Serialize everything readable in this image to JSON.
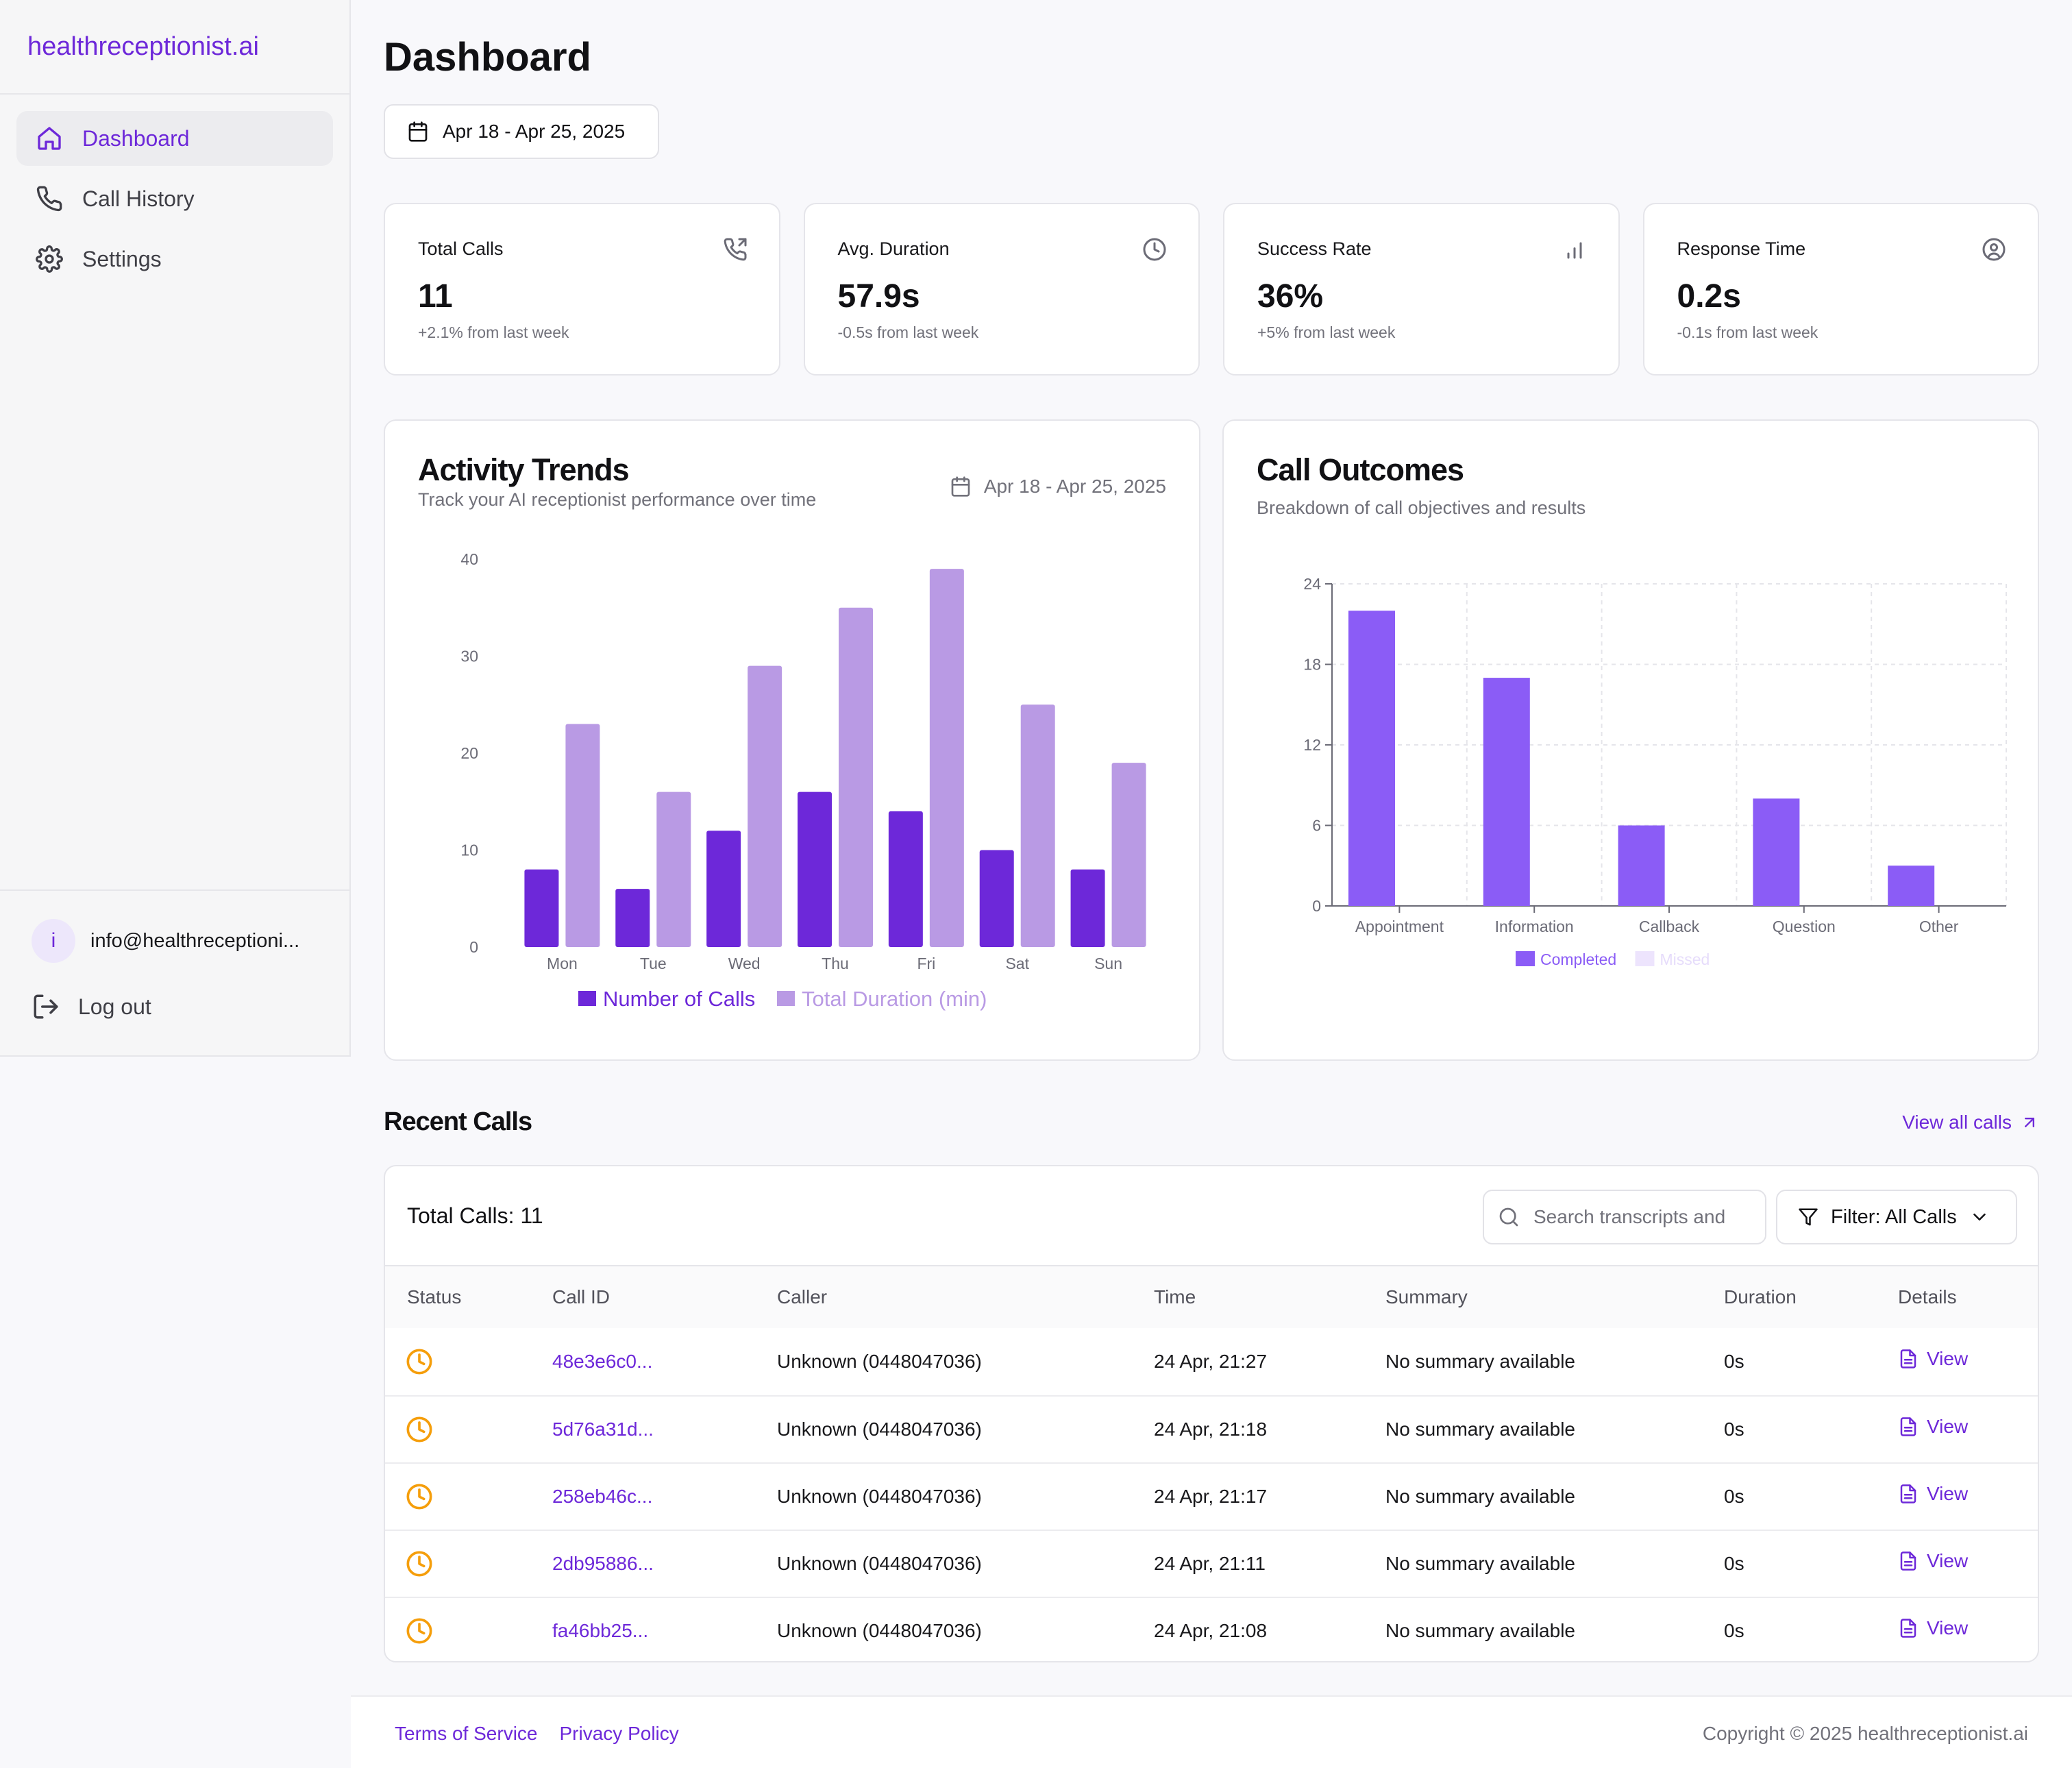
{
  "brand": "healthreceptionist.ai",
  "nav": [
    {
      "label": "Dashboard",
      "icon": "home-icon"
    },
    {
      "label": "Call History",
      "icon": "phone-icon"
    },
    {
      "label": "Settings",
      "icon": "gear-icon"
    }
  ],
  "user": {
    "initial": "i",
    "email": "info@healthreceptioni..."
  },
  "logout_label": "Log out",
  "page_title": "Dashboard",
  "date_range": "Apr 18 - Apr 25, 2025",
  "stats": [
    {
      "label": "Total Calls",
      "value": "11",
      "delta": "+2.1% from last week",
      "icon": "phone-outgoing-icon"
    },
    {
      "label": "Avg. Duration",
      "value": "57.9s",
      "delta": "-0.5s from last week",
      "icon": "clock-icon"
    },
    {
      "label": "Success Rate",
      "value": "36%",
      "delta": "+5% from last week",
      "icon": "bar-chart-icon"
    },
    {
      "label": "Response Time",
      "value": "0.2s",
      "delta": "-0.1s from last week",
      "icon": "user-circle-icon"
    }
  ],
  "activity": {
    "title": "Activity Trends",
    "subtitle": "Track your AI receptionist performance over time",
    "date_range": "Apr 18 - Apr 25, 2025"
  },
  "outcomes": {
    "title": "Call Outcomes",
    "subtitle": "Breakdown of call objectives and results"
  },
  "chart_data": [
    {
      "type": "bar",
      "title": "Activity Trends",
      "categories": [
        "Mon",
        "Tue",
        "Wed",
        "Thu",
        "Fri",
        "Sat",
        "Sun"
      ],
      "series": [
        {
          "name": "Number of Calls",
          "color": "#6d28d9",
          "values": [
            8,
            6,
            12,
            16,
            14,
            10,
            8
          ]
        },
        {
          "name": "Total Duration (min)",
          "color": "#b99ae4",
          "values": [
            23,
            16,
            29,
            35,
            39,
            25,
            19
          ]
        }
      ],
      "ylim": [
        0,
        40
      ],
      "yticks": [
        0,
        10,
        20,
        30,
        40
      ],
      "grid": false,
      "legend": "bottom"
    },
    {
      "type": "bar",
      "title": "Call Outcomes",
      "categories": [
        "Appointment",
        "Information",
        "Callback",
        "Question",
        "Other"
      ],
      "series": [
        {
          "name": "Completed",
          "color": "#8b5cf6",
          "values": [
            22,
            17,
            6,
            8,
            3
          ]
        },
        {
          "name": "Missed",
          "color": "#ede4fd",
          "values": [
            0,
            0,
            0,
            0,
            0
          ]
        }
      ],
      "ylim": [
        0,
        24
      ],
      "yticks": [
        0,
        6,
        12,
        18,
        24
      ],
      "grid": true,
      "legend": "bottom"
    }
  ],
  "recent": {
    "title": "Recent Calls",
    "view_all": "View all calls",
    "total_label": "Total Calls: 11",
    "search_placeholder": "Search transcripts and",
    "filter_label": "Filter: All Calls",
    "columns": [
      "Status",
      "Call ID",
      "Caller",
      "Time",
      "Summary",
      "Duration",
      "Details"
    ],
    "rows": [
      {
        "id": "48e3e6c0...",
        "caller": "Unknown (0448047036)",
        "time": "24 Apr, 21:27",
        "summary": "No summary available",
        "duration": "0s",
        "details": "View"
      },
      {
        "id": "5d76a31d...",
        "caller": "Unknown (0448047036)",
        "time": "24 Apr, 21:18",
        "summary": "No summary available",
        "duration": "0s",
        "details": "View"
      },
      {
        "id": "258eb46c...",
        "caller": "Unknown (0448047036)",
        "time": "24 Apr, 21:17",
        "summary": "No summary available",
        "duration": "0s",
        "details": "View"
      },
      {
        "id": "2db95886...",
        "caller": "Unknown (0448047036)",
        "time": "24 Apr, 21:11",
        "summary": "No summary available",
        "duration": "0s",
        "details": "View"
      },
      {
        "id": "fa46bb25...",
        "caller": "Unknown (0448047036)",
        "time": "24 Apr, 21:08",
        "summary": "No summary available",
        "duration": "0s",
        "details": "View"
      }
    ]
  },
  "footer": {
    "terms": "Terms of Service",
    "privacy": "Privacy Policy",
    "copyright": "Copyright © 2025 healthreceptionist.ai"
  }
}
